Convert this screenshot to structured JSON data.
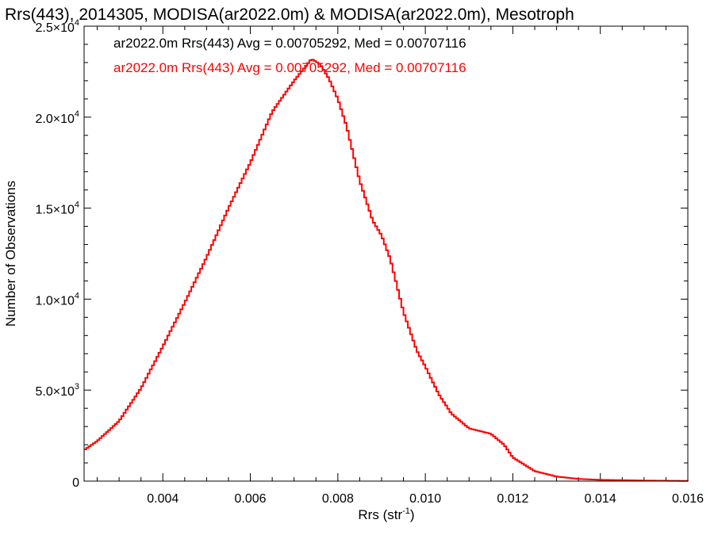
{
  "chart_data": {
    "type": "line",
    "title": "Rrs(443), 2014305, MODISA(ar2022.0m) & MODISA(ar2022.0m), Mesotroph",
    "xlabel": "Rrs (str",
    "xlabel_sup": "-1",
    "xlabel_close": ")",
    "ylabel": "Number of Observations",
    "xlim": [
      0.0022,
      0.016
    ],
    "ylim": [
      0,
      25000
    ],
    "x_ticks": [
      {
        "value": 0.004,
        "label": "0.004"
      },
      {
        "value": 0.006,
        "label": "0.006"
      },
      {
        "value": 0.008,
        "label": "0.008"
      },
      {
        "value": 0.01,
        "label": "0.010"
      },
      {
        "value": 0.012,
        "label": "0.012"
      },
      {
        "value": 0.014,
        "label": "0.014"
      },
      {
        "value": 0.016,
        "label": "0.016"
      }
    ],
    "y_ticks": [
      {
        "value": 0,
        "mant": "0",
        "exp": ""
      },
      {
        "value": 5000,
        "mant": "5.0×10",
        "exp": "3"
      },
      {
        "value": 10000,
        "mant": "1.0×10",
        "exp": "4"
      },
      {
        "value": 15000,
        "mant": "1.5×10",
        "exp": "4"
      },
      {
        "value": 20000,
        "mant": "2.0×10",
        "exp": "4"
      },
      {
        "value": 25000,
        "mant": "2.5×10",
        "exp": "4"
      }
    ],
    "legend": [
      {
        "text": "ar2022.0m Rrs(443) Avg = 0.00705292, Med = 0.00707116",
        "color": "#000000"
      },
      {
        "text": "ar2022.0m Rrs(443) Avg = 0.00705292, Med = 0.00707116",
        "color": "#ff0000"
      }
    ],
    "series": [
      {
        "color": "#ff0000",
        "x": [
          0.0022,
          0.0025,
          0.003,
          0.0035,
          0.004,
          0.0045,
          0.005,
          0.0055,
          0.006,
          0.0065,
          0.007,
          0.0072,
          0.0074,
          0.0076,
          0.0078,
          0.008,
          0.0082,
          0.0085,
          0.0088,
          0.009,
          0.0092,
          0.0095,
          0.0098,
          0.01,
          0.0103,
          0.0106,
          0.011,
          0.0115,
          0.0118,
          0.012,
          0.0125,
          0.013,
          0.0135,
          0.014,
          0.015,
          0.016
        ],
        "y": [
          1700,
          2200,
          3300,
          5100,
          7400,
          9800,
          12300,
          15000,
          17500,
          20300,
          22000,
          22600,
          23200,
          22900,
          22100,
          21000,
          19500,
          16500,
          14300,
          13500,
          12200,
          9300,
          7200,
          6300,
          4800,
          3700,
          2900,
          2600,
          2000,
          1300,
          550,
          250,
          120,
          70,
          30,
          10
        ]
      }
    ]
  }
}
